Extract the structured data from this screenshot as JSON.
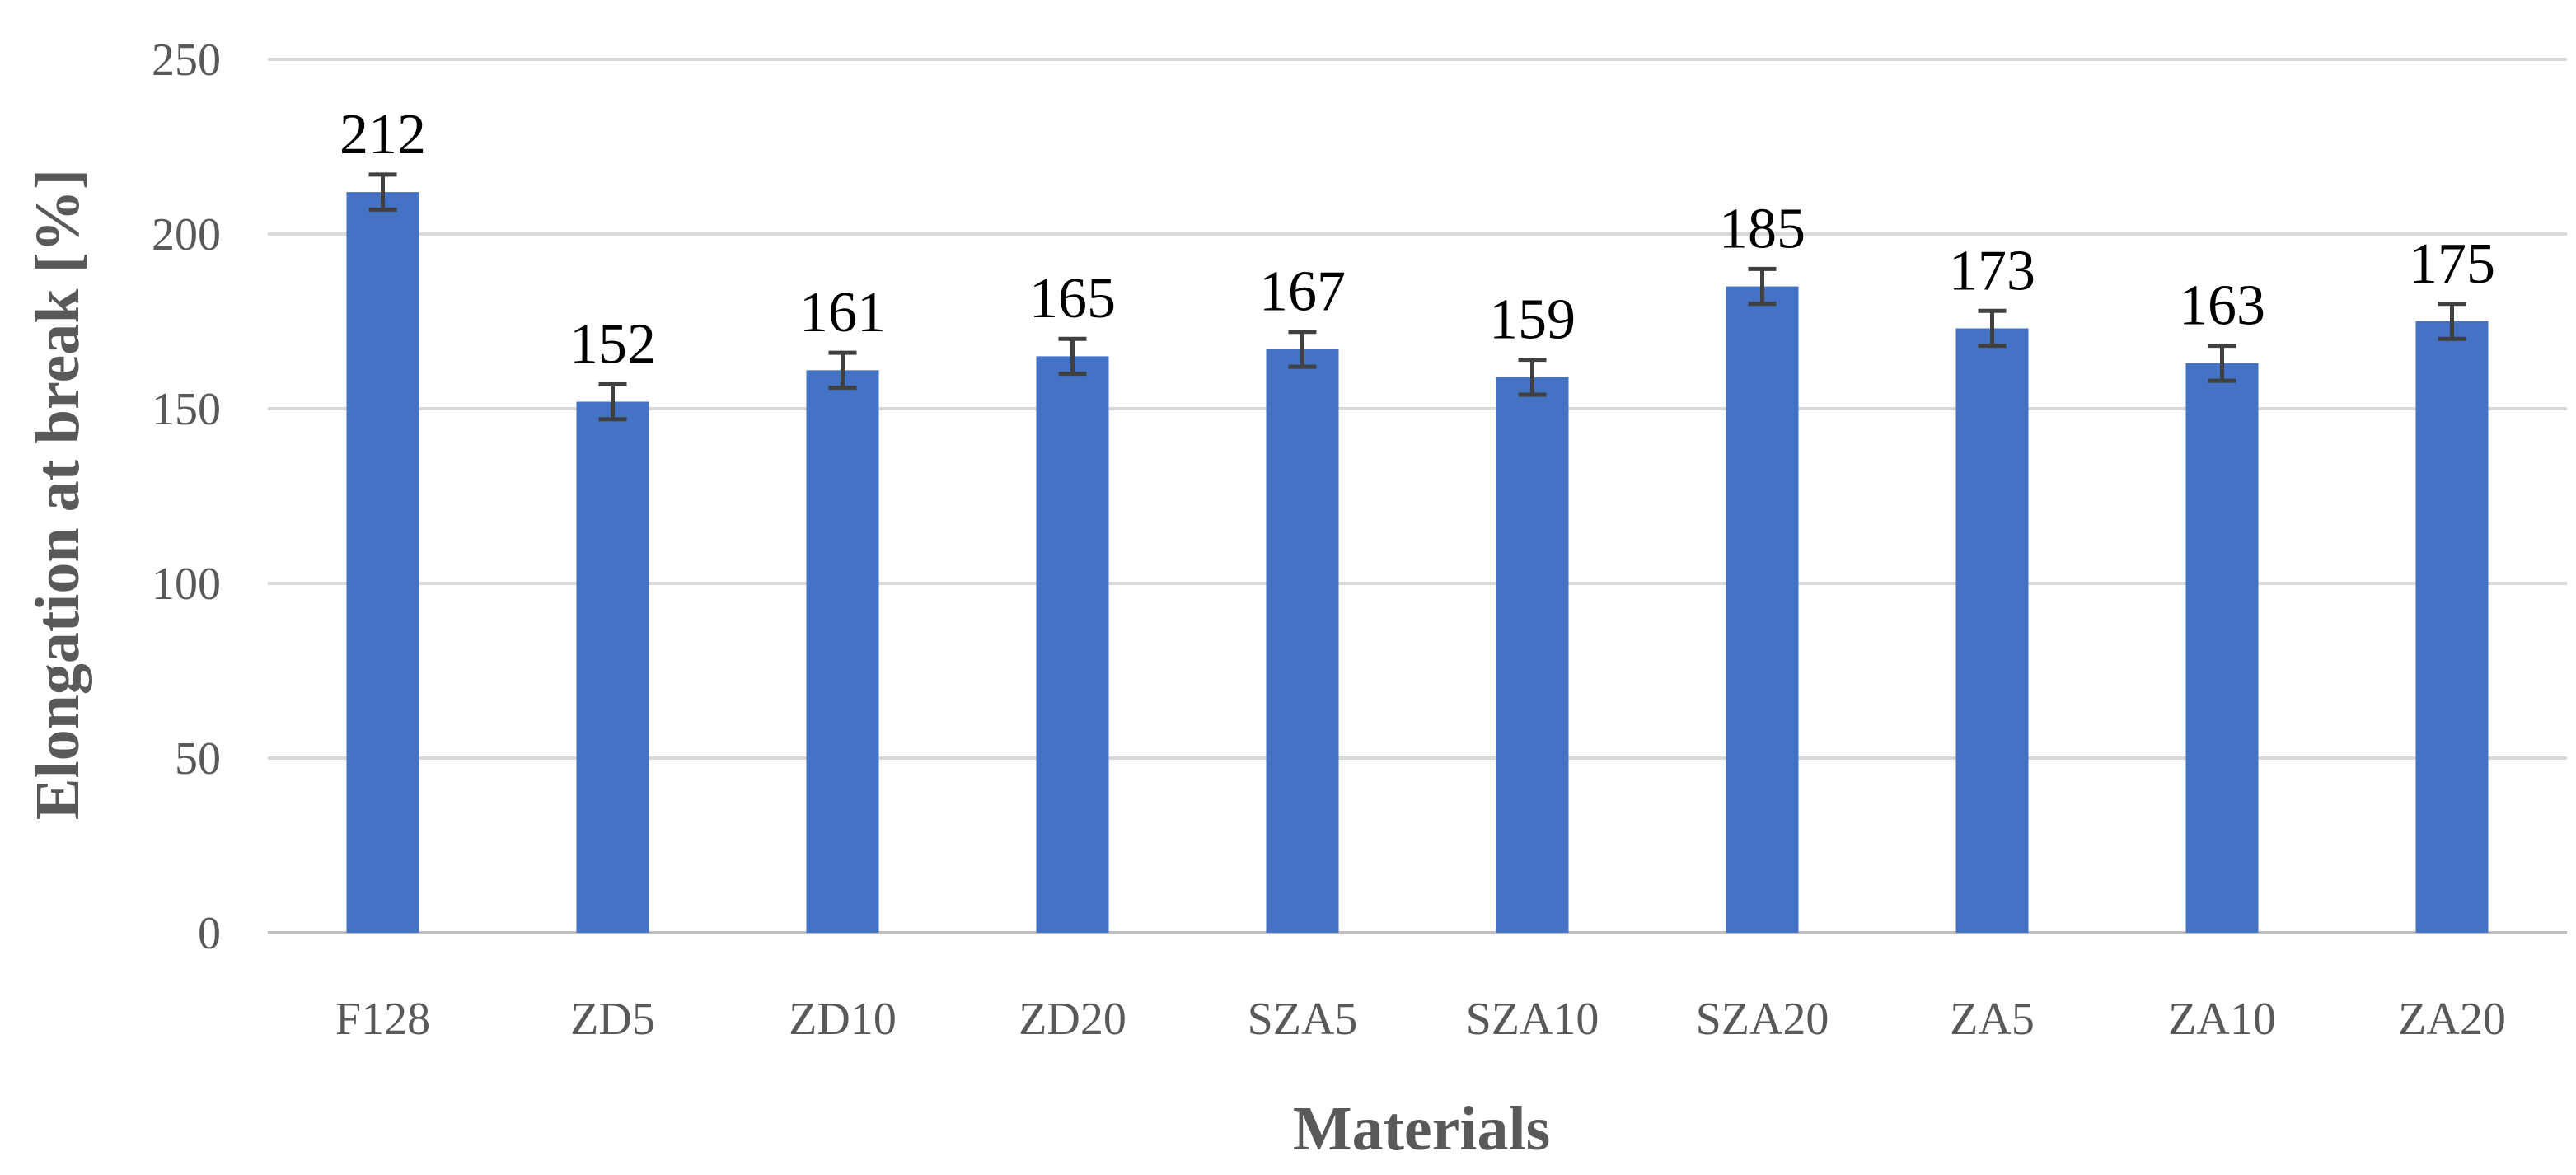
{
  "chart_data": {
    "type": "bar",
    "title": "",
    "xlabel": "Materials",
    "ylabel": "Elongation at break [%]",
    "ylim": [
      0,
      250
    ],
    "yticks": [
      0,
      50,
      100,
      150,
      200,
      250
    ],
    "grid": true,
    "categories": [
      "F128",
      "ZD5",
      "ZD10",
      "ZD20",
      "SZA5",
      "SZA10",
      "SZA20",
      "ZA5",
      "ZA10",
      "ZA20"
    ],
    "values": [
      212,
      152,
      161,
      165,
      167,
      159,
      185,
      173,
      163,
      175
    ],
    "error": [
      5,
      5,
      5,
      5,
      5,
      5,
      5,
      5,
      5,
      5
    ],
    "data_labels": [
      "212",
      "152",
      "161",
      "165",
      "167",
      "159",
      "185",
      "173",
      "163",
      "175"
    ],
    "bar_color": "#4472c4",
    "error_bar_color": "#404040"
  }
}
